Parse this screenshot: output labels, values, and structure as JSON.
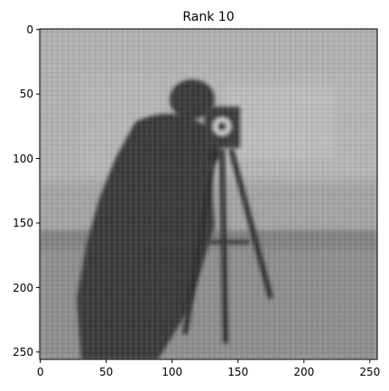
{
  "title": "Rank 10",
  "image": {
    "description_kind": "grayscale-photo-low-rank",
    "subject": "cameraman",
    "pixel_extent": [
      256,
      256
    ],
    "colors": {
      "background_gray": "#a4a4a4",
      "sky_gray": "#b2b2b2",
      "ground_gray": "#8e8e8e",
      "figure_dark": "#3a3a3a",
      "tripod_dark": "#2f2f2f",
      "highlight": "#d8d8d8"
    }
  },
  "axes": {
    "x_ticks": [
      "0",
      "50",
      "100",
      "150",
      "200",
      "250"
    ],
    "y_ticks": [
      "0",
      "50",
      "100",
      "150",
      "200",
      "250"
    ],
    "x_range": [
      0,
      256
    ],
    "y_range": [
      0,
      256
    ],
    "y_inverted": true
  }
}
